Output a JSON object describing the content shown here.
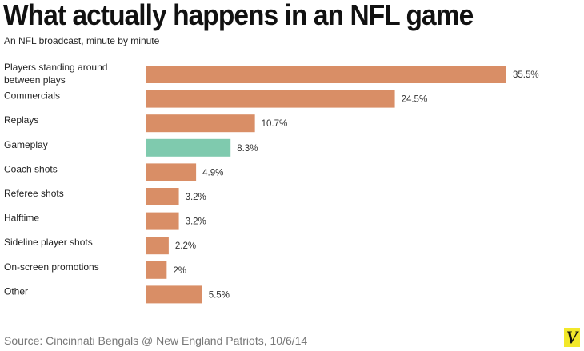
{
  "chart_data": {
    "type": "bar",
    "orientation": "horizontal",
    "title": "What actually happens in an NFL game",
    "subtitle": "An NFL broadcast, minute by minute",
    "categories": [
      "Players standing around between plays",
      "Commercials",
      "Replays",
      "Gameplay",
      "Coach shots",
      "Referee shots",
      "Halftime",
      "Sideline player shots",
      "On-screen promotions",
      "Other"
    ],
    "category_lines": [
      [
        "Players standing around",
        "between plays"
      ],
      [
        "Commercials"
      ],
      [
        "Replays"
      ],
      [
        "Gameplay"
      ],
      [
        "Coach shots"
      ],
      [
        "Referee shots"
      ],
      [
        "Halftime"
      ],
      [
        "Sideline player shots"
      ],
      [
        "On-screen promotions"
      ],
      [
        "Other"
      ]
    ],
    "values": [
      35.5,
      24.5,
      10.7,
      8.3,
      4.9,
      3.2,
      3.2,
      2.2,
      2,
      5.5
    ],
    "value_labels": [
      "35.5%",
      "24.5%",
      "10.7%",
      "8.3%",
      "4.9%",
      "3.2%",
      "3.2%",
      "2.2%",
      "2%",
      "5.5%"
    ],
    "highlight_category": "Gameplay",
    "colors": {
      "default": "#d98e66",
      "highlight": "#7fcaae"
    },
    "xlabel": "",
    "ylabel": "",
    "xlim": [
      0,
      35.5
    ],
    "grid": false,
    "source": "Source: Cincinnati Bengals @ New England Patriots, 10/6/14"
  },
  "logo": "V"
}
